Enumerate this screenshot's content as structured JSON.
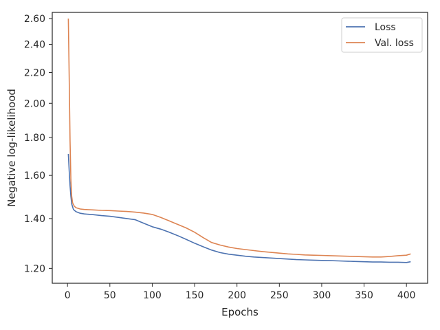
{
  "chart_data": {
    "type": "line",
    "title": "",
    "xlabel": "Epochs",
    "ylabel": "Negative log-likelihood",
    "xlim": [
      -18,
      425
    ],
    "ylim": [
      1.146,
      2.65
    ],
    "y_scale": "log",
    "grid": false,
    "legend_position": "top-right",
    "x_ticks": [
      0,
      50,
      100,
      150,
      200,
      250,
      300,
      350,
      400
    ],
    "x_tick_labels": [
      "0",
      "50",
      "100",
      "150",
      "200",
      "250",
      "300",
      "350",
      "400"
    ],
    "y_ticks": [
      1.2,
      1.4,
      1.6,
      1.8,
      2.0,
      2.2,
      2.4,
      2.6
    ],
    "y_tick_labels": [
      "1.20",
      "1.40",
      "1.60",
      "1.80",
      "2.00",
      "2.20",
      "2.40",
      "2.60"
    ],
    "series": [
      {
        "name": "Loss",
        "color": "#4c72b0",
        "x": [
          1,
          2,
          3,
          4,
          5,
          7,
          10,
          15,
          20,
          30,
          40,
          50,
          60,
          70,
          80,
          90,
          100,
          110,
          120,
          130,
          140,
          150,
          160,
          170,
          180,
          190,
          200,
          210,
          220,
          230,
          240,
          250,
          260,
          270,
          280,
          290,
          300,
          310,
          320,
          330,
          340,
          350,
          360,
          370,
          380,
          390,
          400,
          405
        ],
        "y": [
          1.71,
          1.62,
          1.55,
          1.5,
          1.465,
          1.44,
          1.43,
          1.423,
          1.42,
          1.417,
          1.413,
          1.41,
          1.405,
          1.4,
          1.395,
          1.38,
          1.365,
          1.355,
          1.342,
          1.328,
          1.313,
          1.297,
          1.283,
          1.27,
          1.26,
          1.254,
          1.25,
          1.246,
          1.243,
          1.241,
          1.239,
          1.237,
          1.235,
          1.233,
          1.232,
          1.231,
          1.23,
          1.229,
          1.228,
          1.227,
          1.226,
          1.225,
          1.224,
          1.224,
          1.223,
          1.223,
          1.222,
          1.225
        ]
      },
      {
        "name": "Val. loss",
        "color": "#dd8452",
        "x": [
          1,
          2,
          3,
          4,
          5,
          6,
          8,
          10,
          15,
          20,
          30,
          40,
          50,
          60,
          70,
          80,
          90,
          100,
          110,
          120,
          130,
          140,
          150,
          160,
          170,
          180,
          190,
          200,
          210,
          220,
          230,
          240,
          250,
          260,
          270,
          280,
          290,
          300,
          310,
          320,
          330,
          340,
          350,
          360,
          370,
          380,
          390,
          400,
          405
        ],
        "y": [
          2.6,
          2.15,
          1.78,
          1.58,
          1.5,
          1.47,
          1.455,
          1.448,
          1.442,
          1.44,
          1.438,
          1.436,
          1.435,
          1.433,
          1.431,
          1.428,
          1.424,
          1.418,
          1.405,
          1.39,
          1.375,
          1.36,
          1.342,
          1.32,
          1.3,
          1.29,
          1.282,
          1.276,
          1.272,
          1.268,
          1.264,
          1.261,
          1.258,
          1.255,
          1.253,
          1.251,
          1.25,
          1.249,
          1.248,
          1.247,
          1.246,
          1.245,
          1.244,
          1.243,
          1.243,
          1.245,
          1.248,
          1.25,
          1.255
        ]
      }
    ]
  }
}
